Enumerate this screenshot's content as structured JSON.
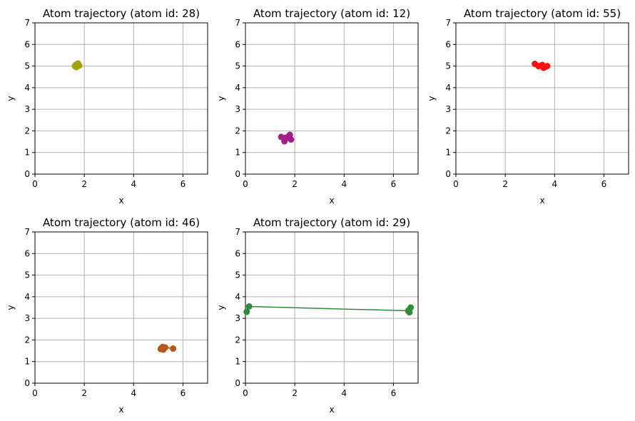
{
  "chart_data": [
    {
      "type": "line",
      "title": "Atom trajectory (atom id: 28)",
      "xlabel": "x",
      "ylabel": "y",
      "xlim": [
        0,
        7
      ],
      "ylim": [
        0,
        7
      ],
      "xticks": [
        "0",
        "2",
        "4",
        "6"
      ],
      "yticks": [
        "0",
        "1",
        "2",
        "3",
        "4",
        "5",
        "6",
        "7"
      ],
      "grid": true,
      "color": "#a3a30f",
      "x": [
        1.65,
        1.75,
        1.8,
        1.7,
        1.62,
        1.72,
        1.68
      ],
      "y": [
        5.05,
        5.12,
        5.02,
        4.98,
        5.0,
        5.08,
        4.95
      ]
    },
    {
      "type": "line",
      "title": "Atom trajectory (atom id: 12)",
      "xlabel": "x",
      "ylabel": "y",
      "xlim": [
        0,
        7
      ],
      "ylim": [
        0,
        7
      ],
      "xticks": [
        "0",
        "2",
        "4",
        "6"
      ],
      "yticks": [
        "0",
        "1",
        "2",
        "3",
        "4",
        "5",
        "6",
        "7"
      ],
      "grid": true,
      "color": "#a3208a",
      "x": [
        1.45,
        1.62,
        1.8,
        1.85,
        1.58,
        1.75
      ],
      "y": [
        1.72,
        1.68,
        1.82,
        1.6,
        1.52,
        1.75
      ]
    },
    {
      "type": "line",
      "title": "Atom trajectory (atom id: 55)",
      "xlabel": "x",
      "ylabel": "y",
      "xlim": [
        0,
        7
      ],
      "ylim": [
        0,
        7
      ],
      "xticks": [
        "0",
        "2",
        "4",
        "6"
      ],
      "yticks": [
        "0",
        "1",
        "2",
        "3",
        "4",
        "5",
        "6",
        "7"
      ],
      "grid": true,
      "color": "#ff1010",
      "x": [
        3.2,
        3.35,
        3.5,
        3.6,
        3.7,
        3.55,
        3.45
      ],
      "y": [
        5.1,
        5.0,
        5.05,
        4.95,
        5.0,
        4.92,
        5.02
      ]
    },
    {
      "type": "line",
      "title": "Atom trajectory (atom id: 46)",
      "xlabel": "x",
      "ylabel": "y",
      "xlim": [
        0,
        7
      ],
      "ylim": [
        0,
        7
      ],
      "xticks": [
        "0",
        "2",
        "4",
        "6"
      ],
      "yticks": [
        "0",
        "1",
        "2",
        "3",
        "4",
        "5",
        "6",
        "7"
      ],
      "grid": true,
      "color": "#b5561c",
      "x": [
        5.12,
        5.2,
        5.28,
        5.6,
        5.18,
        5.1
      ],
      "y": [
        1.62,
        1.55,
        1.65,
        1.6,
        1.68,
        1.58
      ]
    },
    {
      "type": "line",
      "title": "Atom trajectory (atom id: 29)",
      "xlabel": "x",
      "ylabel": "y",
      "xlim": [
        0,
        7
      ],
      "ylim": [
        0,
        7
      ],
      "xticks": [
        "0",
        "2",
        "4",
        "6"
      ],
      "yticks": [
        "0",
        "1",
        "2",
        "3",
        "4",
        "5",
        "6",
        "7"
      ],
      "grid": true,
      "color": "#2e8b3a",
      "x": [
        0.05,
        0.15,
        6.6,
        6.65,
        6.7,
        6.62
      ],
      "y": [
        3.3,
        3.55,
        3.35,
        3.28,
        3.5,
        3.38
      ]
    }
  ]
}
